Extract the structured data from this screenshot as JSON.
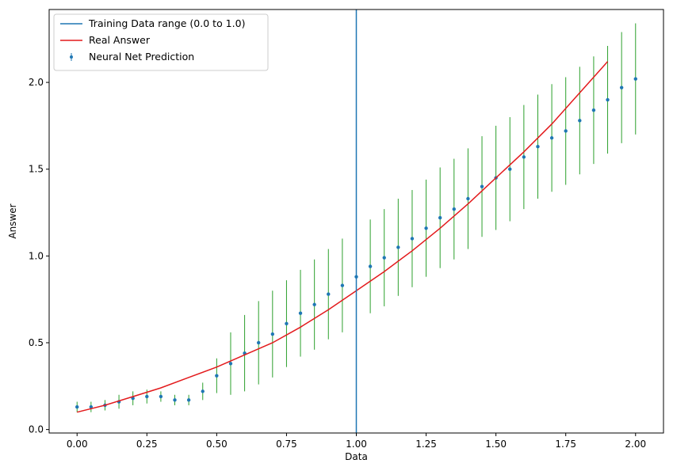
{
  "chart_data": {
    "type": "scatter",
    "title": "",
    "xlabel": "Data",
    "ylabel": "Answer",
    "xlim": [
      -0.1,
      2.1
    ],
    "ylim": [
      -0.02,
      2.42
    ],
    "xticks": [
      0.0,
      0.25,
      0.5,
      0.75,
      1.0,
      1.25,
      1.5,
      1.75,
      2.0
    ],
    "xtick_labels": [
      "0.00",
      "0.25",
      "0.50",
      "0.75",
      "1.00",
      "1.25",
      "1.50",
      "1.75",
      "2.00"
    ],
    "yticks": [
      0.0,
      0.5,
      1.0,
      1.5,
      2.0
    ],
    "ytick_labels": [
      "0.0",
      "0.5",
      "1.0",
      "1.5",
      "2.0"
    ],
    "grid": false,
    "legend_position": "upper-left",
    "legend": [
      {
        "label": "Training Data range (0.0 to 1.0)",
        "kind": "line",
        "color": "#1f77b4"
      },
      {
        "label": "Real Answer",
        "kind": "line",
        "color": "#e31a1c"
      },
      {
        "label": "Neural Net Prediction",
        "kind": "errorbar",
        "color": "#1f77b4"
      }
    ],
    "vline": {
      "x": 1.0,
      "color": "#1f77b4"
    },
    "real_answer": {
      "color": "#e31a1c",
      "x": [
        0.0,
        0.1,
        0.2,
        0.3,
        0.4,
        0.5,
        0.6,
        0.7,
        0.8,
        0.9,
        1.0,
        1.1,
        1.2,
        1.3,
        1.4,
        1.5,
        1.6,
        1.7,
        1.8,
        1.9
      ],
      "y": [
        0.1,
        0.14,
        0.19,
        0.24,
        0.3,
        0.36,
        0.43,
        0.5,
        0.59,
        0.69,
        0.8,
        0.91,
        1.03,
        1.16,
        1.3,
        1.45,
        1.6,
        1.76,
        1.94,
        2.12
      ]
    },
    "prediction": {
      "color": "#1f77b4",
      "errorbar_color": "#2ca02c",
      "x": [
        0.0,
        0.05,
        0.1,
        0.15,
        0.2,
        0.25,
        0.3,
        0.35,
        0.4,
        0.45,
        0.5,
        0.55,
        0.6,
        0.65,
        0.7,
        0.75,
        0.8,
        0.85,
        0.9,
        0.95,
        1.0,
        1.05,
        1.1,
        1.15,
        1.2,
        1.25,
        1.3,
        1.35,
        1.4,
        1.45,
        1.5,
        1.55,
        1.6,
        1.65,
        1.7,
        1.75,
        1.8,
        1.85,
        1.9,
        1.95,
        2.0
      ],
      "y": [
        0.13,
        0.13,
        0.14,
        0.16,
        0.18,
        0.19,
        0.19,
        0.17,
        0.17,
        0.22,
        0.31,
        0.38,
        0.44,
        0.5,
        0.55,
        0.61,
        0.67,
        0.72,
        0.78,
        0.83,
        0.88,
        0.94,
        0.99,
        1.05,
        1.1,
        1.16,
        1.22,
        1.27,
        1.33,
        1.4,
        1.45,
        1.5,
        1.57,
        1.63,
        1.68,
        1.72,
        1.78,
        1.84,
        1.9,
        1.97,
        2.02
      ],
      "err": [
        0.03,
        0.03,
        0.03,
        0.04,
        0.04,
        0.04,
        0.03,
        0.03,
        0.03,
        0.05,
        0.1,
        0.18,
        0.22,
        0.24,
        0.25,
        0.25,
        0.25,
        0.26,
        0.26,
        0.27,
        0.27,
        0.27,
        0.28,
        0.28,
        0.28,
        0.28,
        0.29,
        0.29,
        0.29,
        0.29,
        0.3,
        0.3,
        0.3,
        0.3,
        0.31,
        0.31,
        0.31,
        0.31,
        0.31,
        0.32,
        0.32
      ]
    }
  }
}
